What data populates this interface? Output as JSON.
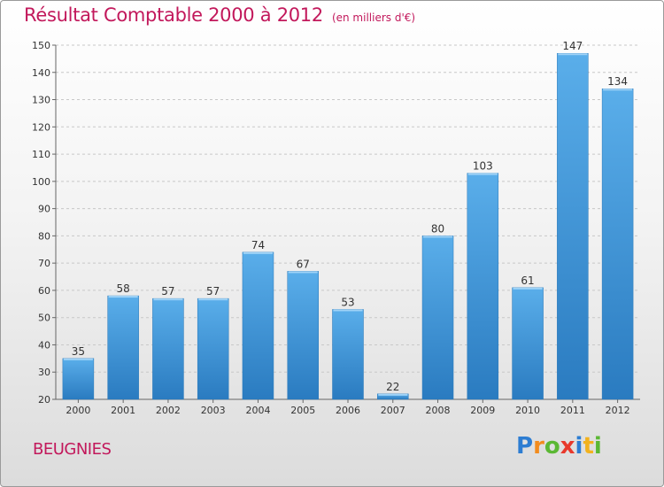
{
  "chart_data": {
    "type": "bar",
    "title": "Résultat Comptable 2000 à 2012",
    "subtitle": "(en milliers d'€)",
    "categories": [
      "2000",
      "2001",
      "2002",
      "2003",
      "2004",
      "2005",
      "2006",
      "2007",
      "2008",
      "2009",
      "2010",
      "2011",
      "2012"
    ],
    "values": [
      35,
      58,
      57,
      57,
      74,
      67,
      53,
      22,
      80,
      103,
      61,
      147,
      134
    ],
    "ylim": [
      20,
      150
    ],
    "yticks": [
      20,
      30,
      40,
      50,
      60,
      70,
      80,
      90,
      100,
      110,
      120,
      130,
      140,
      150
    ],
    "grid": true,
    "bar_color": "#3f93d6"
  },
  "commune": "BEUGNIES",
  "logo": {
    "text": "Proxiti",
    "letters": [
      {
        "ch": "P",
        "color": "#2d7dd2"
      },
      {
        "ch": "r",
        "color": "#f28c1e"
      },
      {
        "ch": "o",
        "color": "#5bb834"
      },
      {
        "ch": "x",
        "color": "#e8392c"
      },
      {
        "ch": "i",
        "color": "#2d7dd2"
      },
      {
        "ch": "t",
        "color": "#f2b21e"
      },
      {
        "ch": "i",
        "color": "#5bb834"
      }
    ]
  }
}
